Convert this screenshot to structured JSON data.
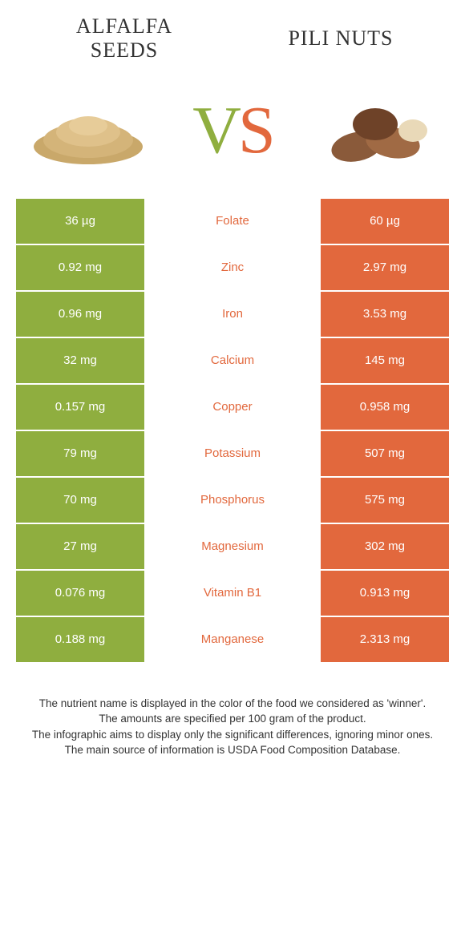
{
  "colors": {
    "left": "#8fae3f",
    "right": "#e2683d",
    "text": "#333333",
    "bg": "#ffffff"
  },
  "header": {
    "left_title_line1": "Alfalfa",
    "left_title_line2": "seeds",
    "right_title": "Pili nuts",
    "vs_v": "V",
    "vs_s": "S"
  },
  "rows": [
    {
      "left": "36 µg",
      "label": "Folate",
      "right": "60 µg",
      "winner": "right"
    },
    {
      "left": "0.92 mg",
      "label": "Zinc",
      "right": "2.97 mg",
      "winner": "right"
    },
    {
      "left": "0.96 mg",
      "label": "Iron",
      "right": "3.53 mg",
      "winner": "right"
    },
    {
      "left": "32 mg",
      "label": "Calcium",
      "right": "145 mg",
      "winner": "right"
    },
    {
      "left": "0.157 mg",
      "label": "Copper",
      "right": "0.958 mg",
      "winner": "right"
    },
    {
      "left": "79 mg",
      "label": "Potassium",
      "right": "507 mg",
      "winner": "right"
    },
    {
      "left": "70 mg",
      "label": "Phosphorus",
      "right": "575 mg",
      "winner": "right"
    },
    {
      "left": "27 mg",
      "label": "Magnesium",
      "right": "302 mg",
      "winner": "right"
    },
    {
      "left": "0.076 mg",
      "label": "Vitamin B1",
      "right": "0.913 mg",
      "winner": "right"
    },
    {
      "left": "0.188 mg",
      "label": "Manganese",
      "right": "2.313 mg",
      "winner": "right"
    }
  ],
  "footer": {
    "line1": "The nutrient name is displayed in the color of the food we considered as 'winner'.",
    "line2": "The amounts are specified per 100 gram of the product.",
    "line3": "The infographic aims to display only the significant differences, ignoring minor ones.",
    "line4": "The main source of information is USDA Food Composition Database."
  }
}
